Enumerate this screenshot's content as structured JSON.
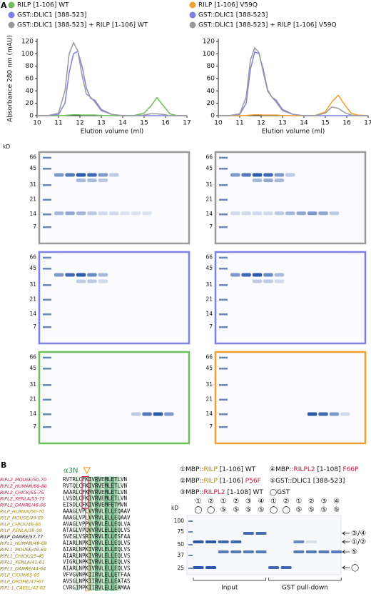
{
  "panel_labels": [
    "A",
    "B"
  ],
  "chart_data": [
    {
      "type": "line",
      "y_label": "Absorbance 280 nm (mAU)",
      "x_label": "Elution volume (ml)",
      "x": [
        10,
        10.5,
        11,
        11.3,
        11.5,
        11.7,
        11.9,
        12.1,
        12.3,
        12.5,
        12.7,
        13,
        13.5,
        14,
        14.5,
        15,
        15.3,
        15.6,
        15.9,
        16.2,
        16.5,
        17
      ],
      "xlim": [
        10,
        17
      ],
      "ylim": [
        0,
        120
      ],
      "xticks": [
        10,
        11,
        12,
        13,
        14,
        15,
        16,
        17
      ],
      "yticks": [
        0,
        20,
        40,
        60,
        80,
        100,
        120
      ],
      "series": [
        {
          "name": "RILP [1-106] WT",
          "color": "#6cbf5a",
          "values": [
            0,
            0,
            0,
            0.5,
            1,
            1.5,
            1.5,
            1,
            1,
            1,
            1,
            0.5,
            0,
            0,
            0,
            4,
            15,
            29,
            16,
            3,
            0.5,
            0
          ]
        },
        {
          "name": "GST::DLIC1 [388-523]",
          "color": "#7f7fe6",
          "values": [
            0,
            0,
            2,
            20,
            70,
            100,
            104,
            80,
            45,
            28,
            25,
            10,
            2,
            0,
            0,
            0,
            0,
            0,
            0,
            0,
            0,
            0
          ]
        },
        {
          "name": "GST::DLIC1 [388-523] + RILP [1-106] WT",
          "color": "#9a9a9a",
          "values": [
            0,
            0,
            4,
            40,
            100,
            118,
            105,
            65,
            35,
            30,
            22,
            8,
            2,
            0,
            0,
            1,
            3,
            3,
            2,
            0,
            0,
            0
          ]
        }
      ]
    },
    {
      "type": "line",
      "x_label": "Elution volume (ml)",
      "x": [
        10,
        10.5,
        11,
        11.3,
        11.5,
        11.7,
        11.9,
        12.1,
        12.3,
        12.5,
        12.7,
        13,
        13.5,
        14,
        14.5,
        15,
        15.3,
        15.6,
        15.9,
        16.2,
        16.5,
        17
      ],
      "xlim": [
        10,
        17
      ],
      "ylim": [
        0,
        120
      ],
      "xticks": [
        10,
        11,
        12,
        13,
        14,
        15,
        16,
        17
      ],
      "yticks": [
        0,
        20,
        40,
        60,
        80,
        100,
        120
      ],
      "series": [
        {
          "name": "RILP [1-106] V59Q",
          "color": "#f0a030",
          "values": [
            0,
            0,
            0,
            0.5,
            1,
            1.5,
            1.5,
            1,
            1,
            1,
            1,
            0.5,
            0,
            0,
            0,
            6,
            22,
            33,
            18,
            4,
            1,
            0
          ]
        },
        {
          "name": "GST::DLIC1 [388-523]",
          "color": "#7f7fe6",
          "values": [
            0,
            0,
            2,
            20,
            75,
            103,
            100,
            75,
            42,
            30,
            25,
            10,
            2,
            0,
            0,
            0,
            0,
            0,
            0,
            0,
            0,
            0
          ]
        },
        {
          "name": "GST::DLIC1 [388-523] + RILP [1-106] V59Q",
          "color": "#9a9a9a",
          "values": [
            0,
            0,
            3,
            30,
            90,
            110,
            102,
            70,
            40,
            30,
            22,
            8,
            2,
            0,
            0,
            4,
            14,
            12,
            5,
            1,
            0,
            0
          ]
        }
      ]
    }
  ],
  "gels": {
    "unit": "kD",
    "markers": [
      66,
      45,
      31,
      21,
      14,
      7
    ]
  },
  "alignment": {
    "header": "α3N",
    "rows": [
      {
        "name": "RIPL2_MOUSE/50-70",
        "seq": "RVTRLCFKIVRVEMLETLVN",
        "color": "#c8143c"
      },
      {
        "name": "RIPL2_HUMAN/60-80",
        "seq": "RVTQLCFKIVRVEMLETLVN",
        "color": "#c8143c"
      },
      {
        "name": "RIPL2_CHICK/55-75",
        "seq": "AAARLCFKMVRVEMLETLVN",
        "color": "#c8143c"
      },
      {
        "name": "RIPL2_XENLA/55-75",
        "seq": "LVSDLCFKIVRVEMLETLVN",
        "color": "#c8143c"
      },
      {
        "name": "RIPL2_DANRE/46-66",
        "seq": "EISDLCFKIVRVEMFETMVN",
        "color": "#c8143c"
      },
      {
        "name": "RILP_HUMAN/50-70",
        "seq": "AAAGLVPLVVRVLELLEQAAV",
        "color": "#b08a10"
      },
      {
        "name": "RILP_MOUSE/49-69",
        "seq": "AAAGLVPLVVRVLELLEQAAV",
        "color": "#b08a10"
      },
      {
        "name": "RILP_CHICK/46-66",
        "seq": "AVAGLVPPVVRVLELLEQLVA",
        "color": "#b08a10"
      },
      {
        "name": "RILP_XENLA/39-59",
        "seq": "ATAGLVPQVVRVLELLEQLVS",
        "color": "#b08a10"
      },
      {
        "name": "RILP_DANRE/57-77",
        "seq": "SVEGLVSRIVRVLELLESFAA",
        "color": "#111111"
      },
      {
        "name": "RIPL1_HUMAN/49-69",
        "seq": "AIARLNPKIVRVLELLEQLVS",
        "color": "#8a7a10"
      },
      {
        "name": "RIPL1_MOUSE/49-69",
        "seq": "AIARLNPKIVRVLELLEQLVS",
        "color": "#8a7a10"
      },
      {
        "name": "RIPL1_CHICK/25-45",
        "seq": "AIARLNPKIVRVLELLEQLVS",
        "color": "#8a7a10"
      },
      {
        "name": "RIPL1_XENLA/41-61",
        "seq": "VIGRLNPKIVRVLELLEQLVS",
        "color": "#8a7a10"
      },
      {
        "name": "RIPL1_DANRE/44-64",
        "seq": "AIARLNPKIVRVLELLEQLVS",
        "color": "#8a7a10"
      },
      {
        "name": "RILP_CIOIN/65-85",
        "seq": "VFVGVNPKIIRVLELLETFAA",
        "color": "#b08a10"
      },
      {
        "name": "RILP_DROME/47-67",
        "seq": "AVSGLNPKIIRVLELLEATAS",
        "color": "#b08a10"
      },
      {
        "name": "RIPL-1_CAEEL/42-62",
        "seq": "CVRGIMPKIIRVLELLEAMAA",
        "color": "#b08a10"
      }
    ]
  },
  "pulldown": {
    "legend": [
      {
        "mark": "①",
        "parts": [
          "MBP::",
          "RILP",
          " [1-106] WT"
        ]
      },
      {
        "mark": "④",
        "parts": [
          "MBP::",
          "RILPL2",
          " [1-108] ",
          "F66P"
        ]
      },
      {
        "mark": "②",
        "parts": [
          "MBP::",
          "RILP",
          " [1-106] ",
          "P56F"
        ]
      },
      {
        "mark": "⑤",
        "parts": [
          "GST::DLIC1 [388-523]"
        ]
      },
      {
        "mark": "③",
        "parts": [
          "MBP::",
          "RILPL2",
          " [1-108] WT"
        ]
      },
      {
        "mark": "◯",
        "parts": [
          "GST"
        ]
      }
    ],
    "unit": "kD",
    "markers": [
      100,
      75,
      50,
      37,
      25
    ],
    "lanes_top": [
      "①",
      "②",
      "①",
      "②",
      "③",
      "④",
      "①",
      "②",
      "①",
      "②",
      "③",
      "④"
    ],
    "lanes_bottom": [
      "◯",
      "◯",
      "⑤",
      "⑤",
      "⑤",
      "⑤",
      "◯",
      "◯",
      "⑤",
      "⑤",
      "⑤",
      "⑤"
    ],
    "arrows": [
      "③/④",
      "①/②",
      "⑤",
      "◯"
    ],
    "groups": [
      "Input",
      "GST pull-down"
    ]
  }
}
